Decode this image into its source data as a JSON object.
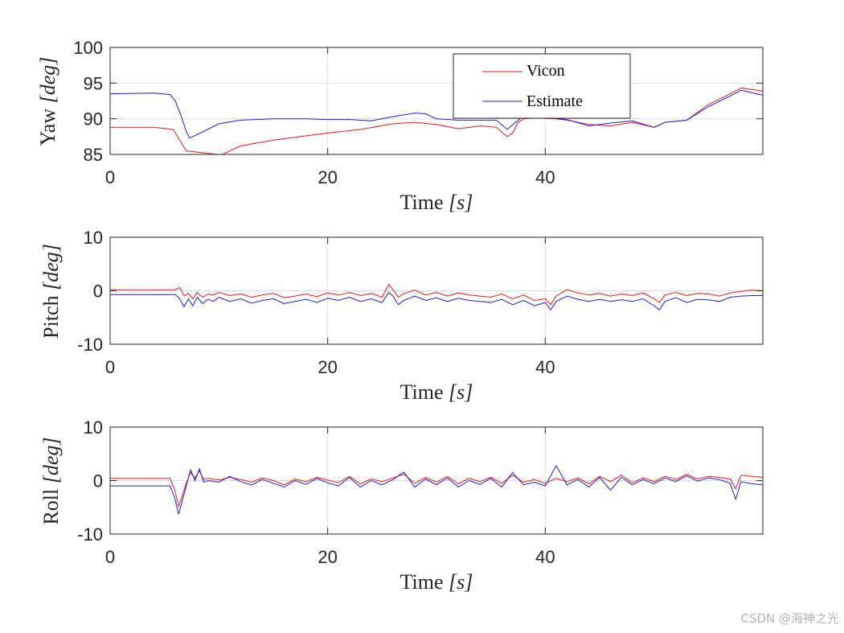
{
  "chart_data": [
    {
      "type": "line",
      "ylabel_text": "Yaw ",
      "ylabel_unit": "[deg]",
      "xlabel_text": "Time ",
      "xlabel_unit": "[s]",
      "xlim": [
        0,
        60
      ],
      "ylim": [
        85,
        100
      ],
      "xticks": [
        0,
        20,
        40
      ],
      "yticks": [
        85,
        90,
        95,
        100
      ],
      "grid": true,
      "legend": {
        "placement": "top-right",
        "entries": [
          "Vicon",
          "Estimate"
        ]
      },
      "series": [
        {
          "name": "Vicon",
          "color": "#e8191e",
          "x": [
            0,
            4,
            5.8,
            6.2,
            6.6,
            7,
            9.9,
            10.3,
            12,
            15,
            18,
            20,
            23,
            26,
            28,
            30,
            32,
            34,
            35.5,
            36.5,
            37,
            37.5,
            38,
            39,
            41,
            42,
            44,
            46,
            48,
            50,
            51,
            53,
            55,
            57,
            58,
            60
          ],
          "y": [
            88.8,
            88.8,
            88.5,
            87.5,
            86.5,
            85.5,
            84.7,
            85.0,
            86.2,
            87.0,
            87.6,
            88.0,
            88.5,
            89.3,
            89.5,
            89.2,
            88.6,
            89.0,
            88.8,
            87.5,
            88.0,
            89.5,
            90.0,
            90.1,
            90.0,
            89.8,
            89.2,
            89.0,
            89.5,
            88.8,
            89.5,
            89.8,
            92.0,
            93.5,
            94.3,
            93.9
          ]
        },
        {
          "name": "Estimate",
          "color": "#1f1fd6",
          "x": [
            0,
            4,
            5.5,
            6,
            6.5,
            7,
            7.3,
            8,
            10,
            12,
            15,
            18,
            20,
            22,
            24,
            26,
            28,
            29,
            30,
            32,
            34,
            35.5,
            36.5,
            37.5,
            38,
            40,
            42,
            44,
            46,
            48,
            50,
            51,
            53,
            55,
            57,
            58,
            60
          ],
          "y": [
            93.5,
            93.6,
            93.4,
            92.5,
            90.5,
            88.2,
            87.3,
            87.8,
            89.3,
            89.8,
            90.0,
            90.0,
            89.9,
            89.9,
            89.7,
            90.3,
            90.8,
            90.7,
            90.0,
            89.8,
            89.8,
            89.8,
            88.5,
            89.8,
            90.5,
            90.2,
            89.9,
            89.0,
            89.4,
            89.7,
            88.8,
            89.5,
            89.8,
            91.7,
            93.2,
            94.0,
            93.3
          ]
        }
      ]
    },
    {
      "type": "line",
      "ylabel_text": "Pitch ",
      "ylabel_unit": "[deg]",
      "xlabel_text": "Time ",
      "xlabel_unit": "[s]",
      "xlim": [
        0,
        60
      ],
      "ylim": [
        -10,
        10
      ],
      "xticks": [
        0,
        20,
        40
      ],
      "yticks": [
        -10,
        0,
        10
      ],
      "grid": true,
      "series": [
        {
          "name": "Vicon",
          "color": "#e8191e",
          "x": [
            0,
            6,
            6.4,
            6.8,
            7.2,
            7.6,
            8,
            8.5,
            9,
            9.5,
            10,
            11,
            12,
            13,
            14,
            15,
            16,
            17,
            18,
            19,
            20,
            21,
            22,
            23,
            24,
            25,
            25.6,
            26,
            26.5,
            27,
            28,
            29,
            30,
            31,
            32,
            33,
            34,
            35,
            36,
            37,
            38,
            39,
            40,
            40.5,
            41,
            42,
            43,
            44,
            45,
            46,
            47,
            48,
            49,
            50,
            50.5,
            51,
            52,
            53,
            54,
            55,
            56,
            57,
            58,
            59,
            60
          ],
          "y": [
            0.2,
            0.2,
            0.6,
            -1.0,
            -0.5,
            -1.5,
            -0.3,
            -1.2,
            -0.6,
            -0.8,
            -0.3,
            -0.9,
            -0.6,
            -1.2,
            -0.8,
            -0.5,
            -1.3,
            -1.0,
            -0.6,
            -1.1,
            -0.4,
            -0.8,
            -0.3,
            -0.9,
            -0.5,
            -1.2,
            1.2,
            0.2,
            -1.2,
            -0.5,
            0.1,
            -0.8,
            -0.3,
            -1.0,
            -0.4,
            -0.8,
            -1.0,
            -1.2,
            -0.6,
            -1.5,
            -0.8,
            -1.8,
            -1.5,
            -2.6,
            -1.0,
            0.2,
            -0.4,
            -0.8,
            -0.5,
            -1.0,
            -0.6,
            -0.9,
            -0.4,
            -1.5,
            -2.2,
            -0.8,
            -0.3,
            -0.9,
            -0.5,
            -0.6,
            -1.0,
            -0.4,
            -0.1,
            0.1,
            0.0
          ]
        },
        {
          "name": "Estimate",
          "color": "#1f1fd6",
          "x": [
            0,
            6,
            6.4,
            6.8,
            7.2,
            7.6,
            8,
            8.5,
            9,
            9.5,
            10,
            11,
            12,
            13,
            14,
            15,
            16,
            17,
            18,
            19,
            20,
            21,
            22,
            23,
            24,
            25,
            25.6,
            26,
            26.5,
            27,
            28,
            29,
            30,
            31,
            32,
            33,
            34,
            35,
            36,
            37,
            38,
            39,
            40,
            40.5,
            41,
            42,
            43,
            44,
            45,
            46,
            47,
            48,
            49,
            50,
            50.5,
            51,
            52,
            53,
            54,
            55,
            56,
            57,
            58,
            59,
            60
          ],
          "y": [
            -0.7,
            -0.7,
            -1.5,
            -3.0,
            -1.5,
            -2.8,
            -1.2,
            -2.4,
            -1.6,
            -2.0,
            -1.2,
            -2.0,
            -1.5,
            -2.3,
            -1.8,
            -1.5,
            -2.4,
            -2.0,
            -1.6,
            -2.2,
            -1.4,
            -1.8,
            -1.2,
            -2.0,
            -1.5,
            -2.2,
            -0.3,
            -1.0,
            -2.6,
            -1.8,
            -1.0,
            -1.8,
            -1.3,
            -2.0,
            -1.4,
            -1.8,
            -2.0,
            -2.2,
            -1.6,
            -2.6,
            -1.8,
            -2.8,
            -2.2,
            -3.6,
            -2.0,
            -1.0,
            -1.6,
            -2.0,
            -1.6,
            -2.0,
            -1.7,
            -2.0,
            -1.5,
            -2.8,
            -3.6,
            -2.0,
            -1.3,
            -2.2,
            -1.6,
            -1.7,
            -2.0,
            -1.2,
            -1.0,
            -0.9,
            -0.9
          ]
        }
      ]
    },
    {
      "type": "line",
      "ylabel_text": "Roll ",
      "ylabel_unit": "[deg]",
      "xlabel_text": "Time ",
      "xlabel_unit": "[s]",
      "xlim": [
        0,
        60
      ],
      "ylim": [
        -10,
        10
      ],
      "xticks": [
        0,
        20,
        40
      ],
      "yticks": [
        -10,
        0,
        10
      ],
      "grid": true,
      "series": [
        {
          "name": "Vicon",
          "color": "#e8191e",
          "x": [
            0,
            5.5,
            5.9,
            6.3,
            6.6,
            7,
            7.4,
            7.8,
            8.2,
            8.6,
            9,
            10,
            11,
            12,
            13,
            14,
            15,
            16,
            17,
            18,
            19,
            20,
            21,
            22,
            23,
            24,
            25,
            26,
            27,
            28,
            29,
            30,
            31,
            32,
            33,
            34,
            35,
            36,
            37,
            38,
            39,
            40,
            41,
            42,
            43,
            44,
            45,
            46,
            47,
            48,
            49,
            50,
            51,
            52,
            53,
            54,
            55,
            56,
            57,
            57.5,
            58,
            59,
            60
          ],
          "y": [
            0.4,
            0.4,
            -1.5,
            -4.8,
            -3.0,
            -0.5,
            1.5,
            0.5,
            1.8,
            0.2,
            0.4,
            0.1,
            0.6,
            0.2,
            -0.3,
            0.5,
            0.0,
            -0.8,
            0.3,
            -0.2,
            0.6,
            0.1,
            -0.4,
            0.8,
            -0.6,
            0.3,
            -0.2,
            0.5,
            1.2,
            -0.5,
            0.6,
            -0.3,
            0.8,
            -0.6,
            0.4,
            -0.2,
            0.6,
            -0.5,
            1.0,
            -0.3,
            0.2,
            -0.5,
            0.4,
            -0.2,
            0.5,
            -0.6,
            0.8,
            -0.2,
            1.0,
            -0.4,
            0.5,
            -0.2,
            0.8,
            0.2,
            1.2,
            0.3,
            0.8,
            0.6,
            0.3,
            -1.5,
            1.0,
            0.8,
            0.6
          ]
        },
        {
          "name": "Estimate",
          "color": "#1f1fd6",
          "x": [
            0,
            5.5,
            5.9,
            6.3,
            6.6,
            7,
            7.4,
            7.8,
            8.2,
            8.6,
            9,
            10,
            11,
            12,
            13,
            14,
            15,
            16,
            17,
            18,
            19,
            20,
            21,
            22,
            23,
            24,
            25,
            26,
            27,
            28,
            29,
            30,
            31,
            32,
            33,
            34,
            35,
            36,
            37,
            38,
            39,
            40,
            41,
            42,
            43,
            44,
            45,
            46,
            47,
            48,
            49,
            50,
            51,
            52,
            53,
            54,
            55,
            56,
            57,
            57.5,
            58,
            59,
            60
          ],
          "y": [
            -1.0,
            -1.0,
            -3.0,
            -6.3,
            -4.0,
            -1.0,
            2.0,
            0.0,
            2.2,
            -0.3,
            0.0,
            -0.3,
            0.8,
            -0.2,
            -0.8,
            0.2,
            -0.5,
            -1.2,
            0.0,
            -0.7,
            0.4,
            -0.4,
            -1.0,
            0.6,
            -1.2,
            0.0,
            -0.8,
            0.2,
            1.6,
            -1.2,
            0.3,
            -0.8,
            0.5,
            -1.2,
            0.0,
            -0.7,
            0.4,
            -1.2,
            1.5,
            -0.8,
            -0.3,
            -1.0,
            2.8,
            -0.8,
            0.2,
            -1.2,
            0.6,
            -1.8,
            0.6,
            -0.8,
            0.2,
            -0.6,
            0.5,
            -0.2,
            0.9,
            -0.1,
            0.5,
            0.2,
            -0.5,
            -3.5,
            -0.2,
            -0.6,
            -0.8
          ]
        }
      ]
    }
  ],
  "watermark": "CSDN @海神之光"
}
